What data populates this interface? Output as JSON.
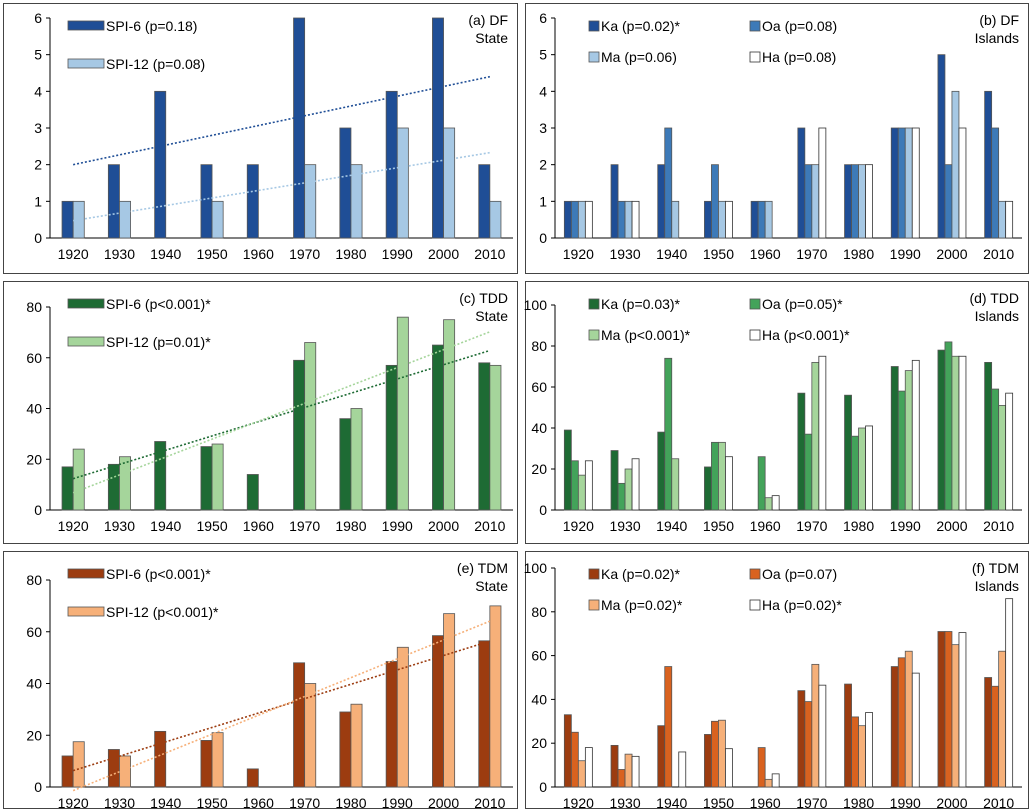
{
  "chart_data": [
    {
      "id": "a",
      "type": "bar",
      "panel_label": "(a) DF",
      "panel_label2": "State",
      "categories": [
        "1920",
        "1930",
        "1940",
        "1950",
        "1960",
        "1970",
        "1980",
        "1990",
        "2000",
        "2010"
      ],
      "ylim": [
        0,
        6
      ],
      "yticks": [
        0,
        1,
        2,
        3,
        4,
        5,
        6
      ],
      "trendlines": true,
      "legend_layout": "stacked",
      "series": [
        {
          "name": "SPI-6 (p=0.18)",
          "color": "#1f4e96",
          "values": [
            1,
            2,
            4,
            2,
            2,
            6,
            3,
            4,
            6,
            2
          ]
        },
        {
          "name": "SPI-12 (p=0.08)",
          "color": "#a6c8e4",
          "values": [
            1,
            1,
            0,
            1,
            0,
            2,
            2,
            3,
            3,
            1
          ]
        }
      ]
    },
    {
      "id": "b",
      "type": "bar",
      "panel_label": "(b) DF",
      "panel_label2": "Islands",
      "categories": [
        "1920",
        "1930",
        "1940",
        "1950",
        "1960",
        "1970",
        "1980",
        "1990",
        "2000",
        "2010"
      ],
      "ylim": [
        0,
        6
      ],
      "yticks": [
        0,
        1,
        2,
        3,
        4,
        5,
        6
      ],
      "trendlines": false,
      "legend_layout": "grid",
      "series": [
        {
          "name": "Ka (p=0.02)*",
          "color": "#1f4e96",
          "values": [
            1,
            2,
            2,
            1,
            1,
            3,
            2,
            3,
            5,
            4
          ]
        },
        {
          "name": "Oa (p=0.08)",
          "color": "#3d7ab8",
          "values": [
            1,
            1,
            3,
            2,
            1,
            2,
            2,
            3,
            2,
            3
          ]
        },
        {
          "name": "Ma (p=0.06)",
          "color": "#a6c8e4",
          "values": [
            1,
            1,
            1,
            1,
            1,
            2,
            2,
            3,
            4,
            1
          ]
        },
        {
          "name": "Ha (p=0.08)",
          "color": "#ffffff",
          "values": [
            1,
            1,
            0,
            1,
            0,
            3,
            2,
            3,
            3,
            1
          ]
        }
      ]
    },
    {
      "id": "c",
      "type": "bar",
      "panel_label": "(c) TDD",
      "panel_label2": "State",
      "categories": [
        "1920",
        "1930",
        "1940",
        "1950",
        "1960",
        "1970",
        "1980",
        "1990",
        "2000",
        "2010"
      ],
      "ylim": [
        0,
        80
      ],
      "yticks": [
        0,
        20,
        40,
        60,
        80
      ],
      "trendlines": true,
      "legend_layout": "stacked",
      "series": [
        {
          "name": "SPI-6 (p<0.001)*",
          "color": "#1e6b34",
          "values": [
            17,
            18,
            27,
            25,
            14,
            59,
            36,
            57,
            65,
            58
          ]
        },
        {
          "name": "SPI-12 (p=0.01)*",
          "color": "#a5d59b",
          "values": [
            24,
            21,
            0,
            26,
            0,
            66,
            40,
            76,
            75,
            57
          ]
        }
      ]
    },
    {
      "id": "d",
      "type": "bar",
      "panel_label": "(d) TDD",
      "panel_label2": "Islands",
      "categories": [
        "1920",
        "1930",
        "1940",
        "1950",
        "1960",
        "1970",
        "1980",
        "1990",
        "2000",
        "2010"
      ],
      "ylim": [
        0,
        100
      ],
      "yticks": [
        0,
        20,
        40,
        60,
        80,
        100
      ],
      "trendlines": false,
      "legend_layout": "grid",
      "series": [
        {
          "name": "Ka (p=0.03)*",
          "color": "#1e6b34",
          "values": [
            39,
            29,
            38,
            21,
            0,
            57,
            56,
            70,
            78,
            72
          ]
        },
        {
          "name": "Oa (p=0.05)*",
          "color": "#43a35a",
          "values": [
            24,
            13,
            74,
            33,
            26,
            37,
            36,
            58,
            82,
            59
          ]
        },
        {
          "name": "Ma (p<0.001)*",
          "color": "#a5d59b",
          "values": [
            17,
            20,
            25,
            33,
            6,
            72,
            40,
            68,
            75,
            51
          ]
        },
        {
          "name": "Ha (p<0.001)*",
          "color": "#ffffff",
          "values": [
            24,
            25,
            0,
            26,
            7,
            75,
            41,
            73,
            75,
            57
          ]
        }
      ]
    },
    {
      "id": "e",
      "type": "bar",
      "panel_label": "(e) TDM",
      "panel_label2": "State",
      "categories": [
        "1920",
        "1930",
        "1940",
        "1950",
        "1960",
        "1970",
        "1980",
        "1990",
        "2000",
        "2010"
      ],
      "ylim": [
        0,
        80
      ],
      "yticks": [
        0,
        20,
        40,
        60,
        80
      ],
      "trendlines": true,
      "legend_layout": "stacked",
      "series": [
        {
          "name": "SPI-6 (p<0.001)*",
          "color": "#9c3c10",
          "values": [
            12,
            14.5,
            21.5,
            18,
            7,
            48,
            29,
            48.5,
            58.5,
            56.5
          ]
        },
        {
          "name": "SPI-12 (p<0.001)*",
          "color": "#f6b079",
          "values": [
            17.5,
            12,
            0,
            21,
            0,
            40,
            32,
            54,
            67,
            70
          ]
        }
      ]
    },
    {
      "id": "f",
      "type": "bar",
      "panel_label": "(f) TDM",
      "panel_label2": "Islands",
      "categories": [
        "1920",
        "1930",
        "1940",
        "1950",
        "1960",
        "1970",
        "1980",
        "1990",
        "2000",
        "2010"
      ],
      "ylim": [
        0,
        100
      ],
      "yticks": [
        0,
        20,
        40,
        60,
        80,
        100
      ],
      "trendlines": false,
      "legend_layout": "grid",
      "series": [
        {
          "name": "Ka (p=0.02)*",
          "color": "#9c3c10",
          "values": [
            33,
            19,
            28,
            24,
            0,
            44,
            47,
            55,
            71,
            50
          ]
        },
        {
          "name": "Oa (p=0.07)",
          "color": "#d9621f",
          "values": [
            25,
            8,
            55,
            30,
            18,
            39,
            32,
            59,
            71,
            46
          ]
        },
        {
          "name": "Ma (p=0.02)*",
          "color": "#f6b079",
          "values": [
            12,
            15,
            0,
            30.5,
            3.5,
            56,
            28,
            62,
            65,
            62
          ]
        },
        {
          "name": "Ha (p=0.02)*",
          "color": "#ffffff",
          "values": [
            18,
            14,
            16,
            17.5,
            6,
            46.5,
            34,
            52,
            70.5,
            86
          ]
        }
      ]
    }
  ]
}
